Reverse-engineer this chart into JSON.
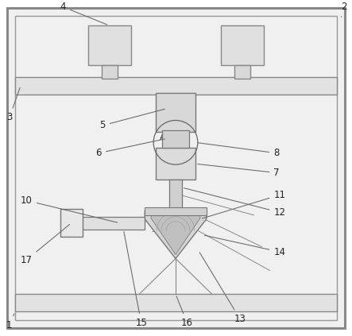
{
  "bg_color": "#ffffff",
  "label_fontsize": 8.5,
  "label_color": "#222222",
  "line_color": "#666666",
  "line_lw": 0.75,
  "frame_ec": "#777777",
  "light_gray": "#e8e8e8",
  "med_gray": "#d0d0d0",
  "dark_gray": "#aaaaaa"
}
